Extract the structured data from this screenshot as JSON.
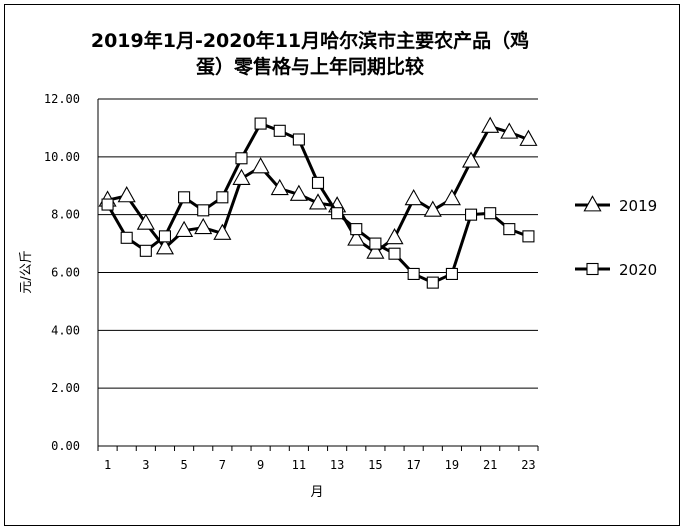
{
  "chart_data": {
    "type": "line",
    "title_line1": "2019年1月-2020年11月哈尔滨市主要农产品（鸡",
    "title_line2": "蛋）零售格与上年同期比较",
    "xlabel": "月",
    "ylabel": "元/公斤",
    "x": [
      1,
      2,
      3,
      4,
      5,
      6,
      7,
      8,
      9,
      10,
      11,
      12,
      13,
      14,
      15,
      16,
      17,
      18,
      19,
      20,
      21,
      22,
      23
    ],
    "xticks": [
      "1",
      "3",
      "5",
      "7",
      "9",
      "11",
      "13",
      "15",
      "17",
      "19",
      "21",
      "23"
    ],
    "yticks": [
      "0.00",
      "2.00",
      "4.00",
      "6.00",
      "8.00",
      "10.00",
      "12.00"
    ],
    "ylim": [
      0,
      12
    ],
    "grid": true,
    "legend_position": "right",
    "series": [
      {
        "name": "2019",
        "marker": "triangle",
        "values": [
          8.5,
          8.65,
          7.7,
          6.85,
          7.45,
          7.55,
          7.35,
          9.25,
          9.65,
          8.9,
          8.7,
          8.4,
          8.3,
          7.15,
          6.7,
          7.2,
          8.55,
          8.15,
          8.55,
          9.85,
          11.05,
          10.85,
          10.6
        ]
      },
      {
        "name": "2020",
        "marker": "square",
        "values": [
          8.35,
          7.2,
          6.75,
          7.25,
          8.6,
          8.15,
          8.6,
          9.95,
          11.15,
          10.9,
          10.6,
          9.1,
          8.05,
          7.5,
          7.0,
          6.65,
          5.95,
          5.65,
          5.95,
          8.0,
          8.05,
          7.5,
          7.25
        ]
      }
    ],
    "colors": {
      "line": "#000000",
      "marker_fill": "#ffffff",
      "grid": "#000000"
    }
  }
}
